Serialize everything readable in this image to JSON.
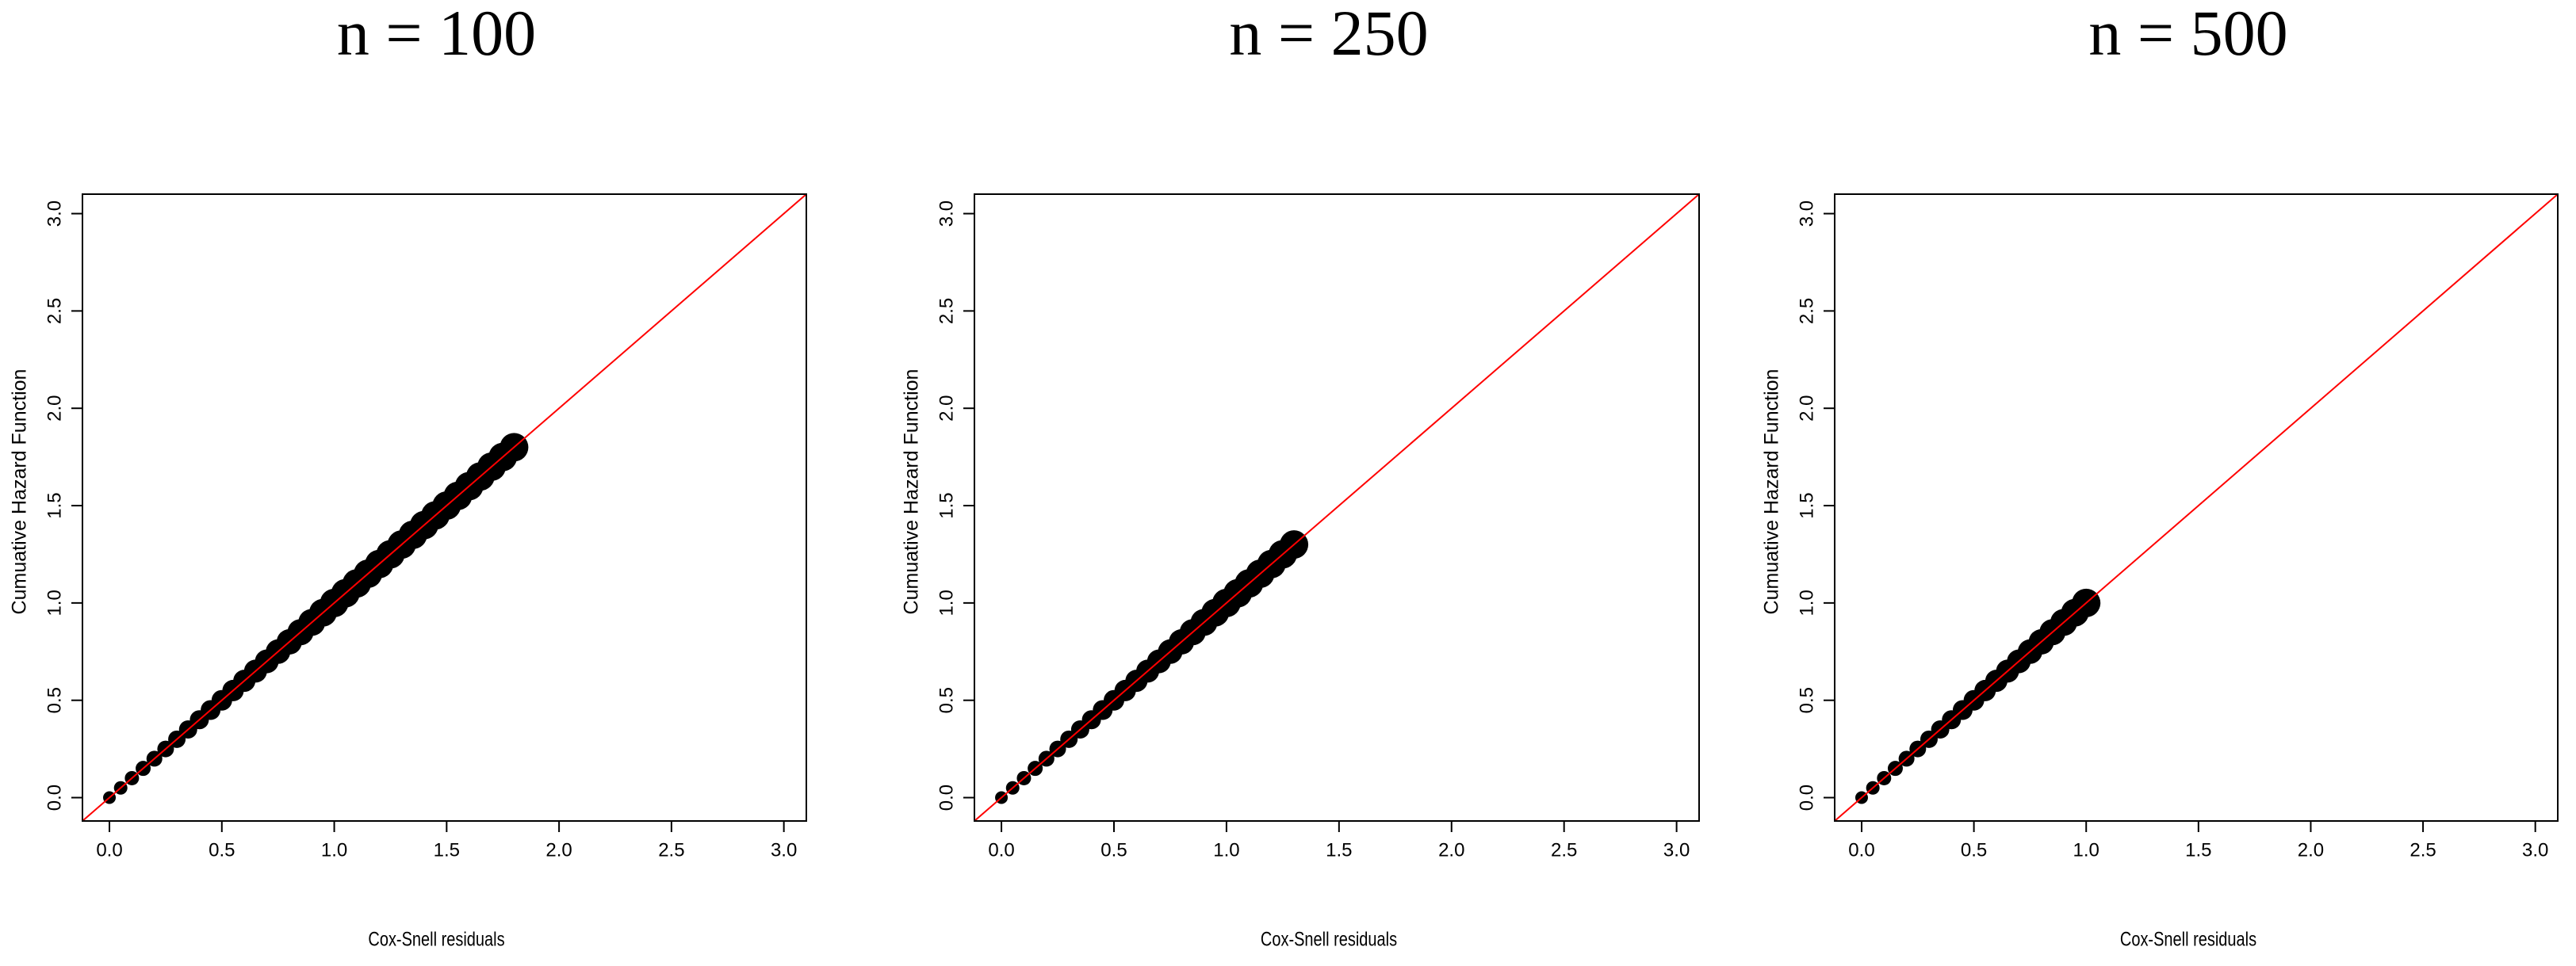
{
  "chart_data": [
    {
      "type": "scatter",
      "title": "n = 100",
      "x_label": "Cox-Snell residuals",
      "y_label": "Cumuative Hazard Function",
      "color": "#000000",
      "x": [
        0,
        0.05,
        0.1,
        0.15,
        0.2,
        0.25,
        0.3,
        0.35,
        0.4,
        0.45,
        0.5,
        0.55,
        0.6,
        0.65,
        0.7,
        0.75,
        0.8,
        0.85,
        0.9,
        0.95,
        1.0,
        1.05,
        1.1,
        1.15,
        1.2,
        1.25,
        1.3,
        1.35,
        1.4,
        1.45,
        1.5,
        1.55,
        1.6,
        1.65,
        1.7,
        1.75,
        1.8
      ],
      "y": [
        0,
        0.05,
        0.1,
        0.15,
        0.2,
        0.25,
        0.3,
        0.35,
        0.4,
        0.45,
        0.5,
        0.55,
        0.6,
        0.65,
        0.7,
        0.75,
        0.8,
        0.85,
        0.9,
        0.95,
        1.0,
        1.05,
        1.1,
        1.15,
        1.2,
        1.25,
        1.3,
        1.35,
        1.4,
        1.45,
        1.5,
        1.55,
        1.6,
        1.65,
        1.7,
        1.75,
        1.8
      ],
      "reference_line": {
        "color": "#ff0000",
        "x": [
          -0.12,
          3.1
        ],
        "y": [
          -0.12,
          3.1
        ]
      },
      "xlim": [
        -0.12,
        3.1
      ],
      "ylim": [
        -0.12,
        3.1
      ],
      "xticks": [
        {
          "value": 0,
          "label": "0.0"
        },
        {
          "value": 0.5,
          "label": "0.5"
        },
        {
          "value": 1,
          "label": "1.0"
        },
        {
          "value": 1.5,
          "label": "1.5"
        },
        {
          "value": 2,
          "label": "2.0"
        },
        {
          "value": 2.5,
          "label": "2.5"
        },
        {
          "value": 3,
          "label": "3.0"
        }
      ],
      "yticks": [
        {
          "value": 0,
          "label": "0.0"
        },
        {
          "value": 0.5,
          "label": "0.5"
        },
        {
          "value": 1,
          "label": "1.0"
        },
        {
          "value": 1.5,
          "label": "1.5"
        },
        {
          "value": 2,
          "label": "2.0"
        },
        {
          "value": 2.5,
          "label": "2.5"
        },
        {
          "value": 3,
          "label": "3.0"
        }
      ]
    },
    {
      "type": "scatter",
      "title": "n = 250",
      "x_label": "Cox-Snell residuals",
      "y_label": "Cumuative Hazard Function",
      "color": "#000000",
      "x": [
        0,
        0.05,
        0.1,
        0.15,
        0.2,
        0.25,
        0.3,
        0.35,
        0.4,
        0.45,
        0.5,
        0.55,
        0.6,
        0.65,
        0.7,
        0.75,
        0.8,
        0.85,
        0.9,
        0.95,
        1.0,
        1.05,
        1.1,
        1.15,
        1.2,
        1.25,
        1.3
      ],
      "y": [
        0,
        0.05,
        0.1,
        0.15,
        0.2,
        0.25,
        0.3,
        0.35,
        0.4,
        0.45,
        0.5,
        0.55,
        0.6,
        0.65,
        0.7,
        0.75,
        0.8,
        0.85,
        0.9,
        0.95,
        1.0,
        1.05,
        1.1,
        1.15,
        1.2,
        1.25,
        1.3
      ],
      "reference_line": {
        "color": "#ff0000",
        "x": [
          -0.12,
          3.1
        ],
        "y": [
          -0.12,
          3.1
        ]
      },
      "xlim": [
        -0.12,
        3.1
      ],
      "ylim": [
        -0.12,
        3.1
      ],
      "xticks": [
        {
          "value": 0,
          "label": "0.0"
        },
        {
          "value": 0.5,
          "label": "0.5"
        },
        {
          "value": 1,
          "label": "1.0"
        },
        {
          "value": 1.5,
          "label": "1.5"
        },
        {
          "value": 2,
          "label": "2.0"
        },
        {
          "value": 2.5,
          "label": "2.5"
        },
        {
          "value": 3,
          "label": "3.0"
        }
      ],
      "yticks": [
        {
          "value": 0,
          "label": "0.0"
        },
        {
          "value": 0.5,
          "label": "0.5"
        },
        {
          "value": 1,
          "label": "1.0"
        },
        {
          "value": 1.5,
          "label": "1.5"
        },
        {
          "value": 2,
          "label": "2.0"
        },
        {
          "value": 2.5,
          "label": "2.5"
        },
        {
          "value": 3,
          "label": "3.0"
        }
      ]
    },
    {
      "type": "scatter",
      "title": "n = 500",
      "x_label": "Cox-Snell residuals",
      "y_label": "Cumuative Hazard Function",
      "color": "#000000",
      "x": [
        0,
        0.05,
        0.1,
        0.15,
        0.2,
        0.25,
        0.3,
        0.35,
        0.4,
        0.45,
        0.5,
        0.55,
        0.6,
        0.65,
        0.7,
        0.75,
        0.8,
        0.85,
        0.9,
        0.95,
        1.0
      ],
      "y": [
        0,
        0.05,
        0.1,
        0.15,
        0.2,
        0.25,
        0.3,
        0.35,
        0.4,
        0.45,
        0.5,
        0.55,
        0.6,
        0.65,
        0.7,
        0.75,
        0.8,
        0.85,
        0.9,
        0.95,
        1.0
      ],
      "reference_line": {
        "color": "#ff0000",
        "x": [
          -0.12,
          3.1
        ],
        "y": [
          -0.12,
          3.1
        ]
      },
      "xlim": [
        -0.12,
        3.1
      ],
      "ylim": [
        -0.12,
        3.1
      ],
      "xticks": [
        {
          "value": 0,
          "label": "0.0"
        },
        {
          "value": 0.5,
          "label": "0.5"
        },
        {
          "value": 1,
          "label": "1.0"
        },
        {
          "value": 1.5,
          "label": "1.5"
        },
        {
          "value": 2,
          "label": "2.0"
        },
        {
          "value": 2.5,
          "label": "2.5"
        },
        {
          "value": 3,
          "label": "3.0"
        }
      ],
      "yticks": [
        {
          "value": 0,
          "label": "0.0"
        },
        {
          "value": 0.5,
          "label": "0.5"
        },
        {
          "value": 1,
          "label": "1.0"
        },
        {
          "value": 1.5,
          "label": "1.5"
        },
        {
          "value": 2,
          "label": "2.0"
        },
        {
          "value": 2.5,
          "label": "2.5"
        },
        {
          "value": 3,
          "label": "3.0"
        }
      ]
    }
  ]
}
